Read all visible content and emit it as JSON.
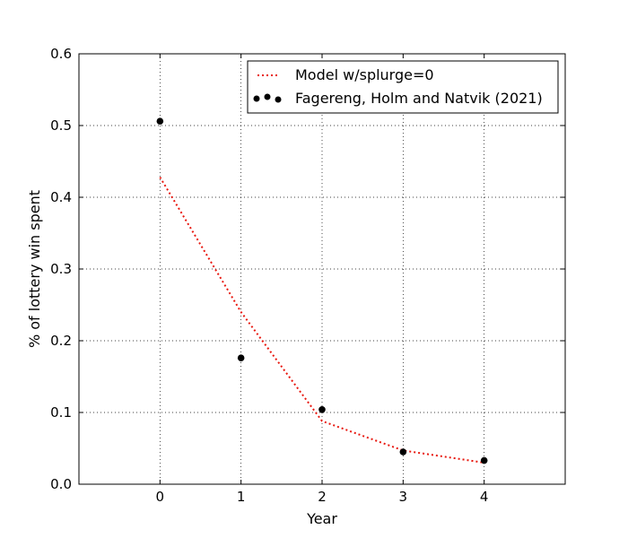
{
  "chart_data": {
    "type": "line",
    "title": "",
    "xlabel": "Year",
    "ylabel": "% of lottery win spent",
    "xlim": [
      -1,
      5
    ],
    "ylim": [
      0.0,
      0.6
    ],
    "xticks": [
      0,
      1,
      2,
      3,
      4
    ],
    "yticks": [
      0.0,
      0.1,
      0.2,
      0.3,
      0.4,
      0.5,
      0.6
    ],
    "ytick_labels": [
      "0.0",
      "0.1",
      "0.2",
      "0.3",
      "0.4",
      "0.5",
      "0.6"
    ],
    "grid": true,
    "legend_position": "top-right",
    "series": [
      {
        "name": "Model w/splurge=0",
        "kind": "line",
        "style": "dotted",
        "color": "#e8180f",
        "x": [
          0,
          1,
          2,
          3,
          4
        ],
        "y": [
          0.428,
          0.24,
          0.088,
          0.047,
          0.03
        ]
      },
      {
        "name": "Fagereng, Holm and Natvik (2021)",
        "kind": "scatter",
        "color": "#000000",
        "x": [
          0,
          1,
          2,
          3,
          4
        ],
        "y": [
          0.506,
          0.176,
          0.104,
          0.045,
          0.033
        ]
      }
    ]
  }
}
